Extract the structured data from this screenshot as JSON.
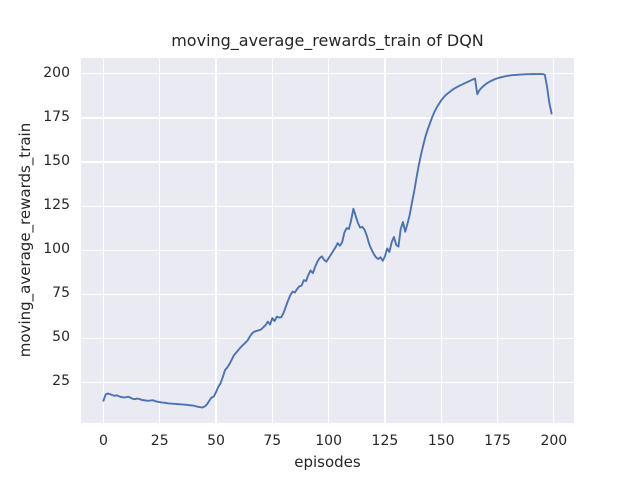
{
  "chart_data": {
    "type": "line",
    "title": "moving_average_rewards_train of DQN",
    "xlabel": "episodes",
    "ylabel": "moving_average_rewards_train",
    "x_ticks": [
      0,
      25,
      50,
      75,
      100,
      125,
      150,
      175,
      200
    ],
    "y_ticks": [
      25,
      50,
      75,
      100,
      125,
      150,
      175,
      200
    ],
    "xlim": [
      -9.95,
      208.95
    ],
    "ylim": [
      2.0,
      209.0
    ],
    "grid": true,
    "legend": "none",
    "colors": {
      "axes_background": "#eaeaf2",
      "grid": "#ffffff",
      "line": "#4c72b0",
      "text": "#262626"
    },
    "series": [
      {
        "name": "moving_average_rewards_train",
        "x_start": 0,
        "x_step": 1,
        "values": [
          14.6,
          18.2,
          18.7,
          18.3,
          17.8,
          17.4,
          17.7,
          17.1,
          16.7,
          16.5,
          16.6,
          16.9,
          16.4,
          15.7,
          15.5,
          15.9,
          15.6,
          15.1,
          14.9,
          14.7,
          14.6,
          14.8,
          14.9,
          14.4,
          14.1,
          13.9,
          13.6,
          13.5,
          13.3,
          13.1,
          13.0,
          12.9,
          12.8,
          12.7,
          12.6,
          12.5,
          12.4,
          12.3,
          12.1,
          12.0,
          11.8,
          11.5,
          11.2,
          11.0,
          10.8,
          11.4,
          12.6,
          14.6,
          16.4,
          17.0,
          19.5,
          22.5,
          24.5,
          28.0,
          32.0,
          33.5,
          35.5,
          38.0,
          40.5,
          42.0,
          43.5,
          45.0,
          46.3,
          47.5,
          48.8,
          51.0,
          52.8,
          53.8,
          54.2,
          54.6,
          55.0,
          56.3,
          57.5,
          59.5,
          57.8,
          61.5,
          59.8,
          62.3,
          61.8,
          62.0,
          64.5,
          68.0,
          71.5,
          74.5,
          76.5,
          76.0,
          78.0,
          79.5,
          80.0,
          83.0,
          82.5,
          86.0,
          88.5,
          87.0,
          90.5,
          93.5,
          95.5,
          96.5,
          94.5,
          93.5,
          95.5,
          97.5,
          99.5,
          101.5,
          104.0,
          102.5,
          104.5,
          110.0,
          112.5,
          112.0,
          117.0,
          123.5,
          119.5,
          115.5,
          112.8,
          113.2,
          111.5,
          108.0,
          103.5,
          100.5,
          98.0,
          96.0,
          95.0,
          96.0,
          94.0,
          96.5,
          101.0,
          99.0,
          104.5,
          107.5,
          103.0,
          102.0,
          112.0,
          116.0,
          110.5,
          115.0,
          120.0,
          127.0,
          133.5,
          141.0,
          148.0,
          154.0,
          159.5,
          164.5,
          168.5,
          172.0,
          175.5,
          178.5,
          181.0,
          183.0,
          185.0,
          186.5,
          188.0,
          189.0,
          190.0,
          191.0,
          191.8,
          192.5,
          193.2,
          193.8,
          194.4,
          195.0,
          195.6,
          196.2,
          196.8,
          197.3,
          188.5,
          190.8,
          192.2,
          193.4,
          194.4,
          195.2,
          195.9,
          196.5,
          197.1,
          197.5,
          197.9,
          198.2,
          198.5,
          198.8,
          199.0,
          199.2,
          199.3,
          199.4,
          199.5,
          199.6,
          199.7,
          199.75,
          199.8,
          199.8,
          199.85,
          199.85,
          199.9,
          199.9,
          199.9,
          199.9,
          199.5,
          192.5,
          183.5,
          177.5
        ]
      }
    ]
  }
}
